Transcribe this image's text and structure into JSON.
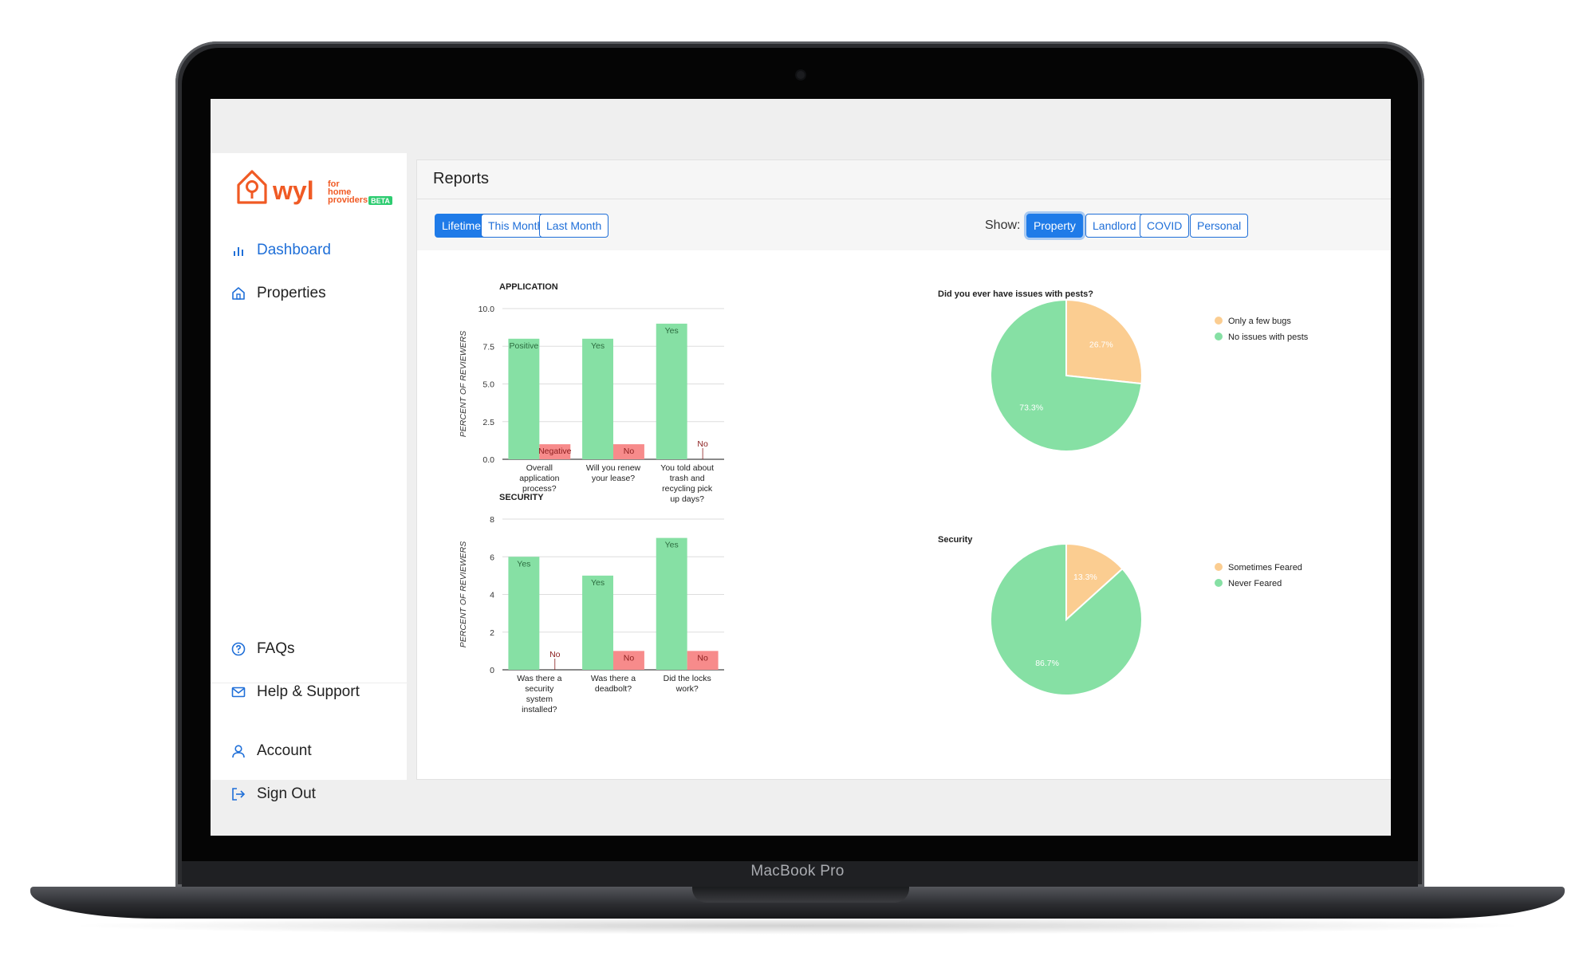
{
  "device": {
    "brand": "MacBook Pro"
  },
  "logo": {
    "word": "wyl",
    "line1": "for",
    "line2": "home",
    "line3": "providers",
    "badge": "BETA"
  },
  "sidebar": {
    "items": [
      {
        "label": "Dashboard",
        "icon": "bar-chart-icon"
      },
      {
        "label": "Properties",
        "icon": "home-icon"
      },
      {
        "label": "FAQs",
        "icon": "question-circle-icon"
      },
      {
        "label": "Help & Support",
        "icon": "envelope-icon"
      },
      {
        "label": "Account",
        "icon": "user-icon"
      },
      {
        "label": "Sign Out",
        "icon": "sign-out-icon"
      }
    ]
  },
  "page": {
    "title": "Reports"
  },
  "period": {
    "buttons": [
      "Lifetime",
      "This Month",
      "Last Month"
    ],
    "selected": "Lifetime"
  },
  "show": {
    "label": "Show:",
    "buttons": [
      "Property",
      "Landlord",
      "COVID",
      "Personal"
    ],
    "selected": "Property"
  },
  "colors": {
    "accent": "#1f7be8",
    "green": "#86e0a4",
    "red": "#f78b8b",
    "orange": "#fbcd91",
    "brand": "#f05a24"
  },
  "chart_data": [
    {
      "type": "bar",
      "title": "APPLICATION",
      "ylabel": "PERCENT OF REVIEWERS",
      "ylim": [
        0,
        10
      ],
      "yticks": [
        "0.0",
        "2.5",
        "5.0",
        "7.5",
        "10.0"
      ],
      "categories": [
        [
          "Overall",
          "application",
          "process?"
        ],
        [
          "Will you renew",
          "your lease?"
        ],
        [
          "You told about",
          "trash and",
          "recycling pick",
          "up days?"
        ]
      ],
      "series": [
        {
          "values": [
            8,
            8,
            9
          ],
          "labels": [
            "Positive",
            "Yes",
            "Yes"
          ]
        },
        {
          "values": [
            1,
            1,
            0
          ],
          "labels": [
            "Negative",
            "No",
            "No"
          ]
        }
      ]
    },
    {
      "type": "bar",
      "title": "SECURITY",
      "ylabel": "PERCENT OF REVIEWERS",
      "ylim": [
        0,
        8
      ],
      "yticks": [
        "0",
        "2",
        "4",
        "6",
        "8"
      ],
      "categories": [
        [
          "Was there a",
          "security",
          "system",
          "installed?"
        ],
        [
          "Was there a",
          "deadbolt?"
        ],
        [
          "Did the locks",
          "work?"
        ]
      ],
      "series": [
        {
          "values": [
            6,
            5,
            7
          ],
          "labels": [
            "Yes",
            "Yes",
            "Yes"
          ]
        },
        {
          "values": [
            0,
            1,
            1
          ],
          "labels": [
            "No",
            "No",
            "No"
          ]
        }
      ]
    },
    {
      "type": "pie",
      "title": "Did you ever have issues with pests?",
      "slices": [
        {
          "name": "Only a few bugs",
          "value": 26.7,
          "label": "26.7%"
        },
        {
          "name": "No issues with pests",
          "value": 73.3,
          "label": "73.3%"
        }
      ],
      "legend": "top-right"
    },
    {
      "type": "pie",
      "title": "Security",
      "slices": [
        {
          "name": "Sometimes Feared",
          "value": 13.3,
          "label": "13.3%"
        },
        {
          "name": "Never Feared",
          "value": 86.7,
          "label": "86.7%"
        }
      ],
      "legend": "top-right"
    }
  ]
}
